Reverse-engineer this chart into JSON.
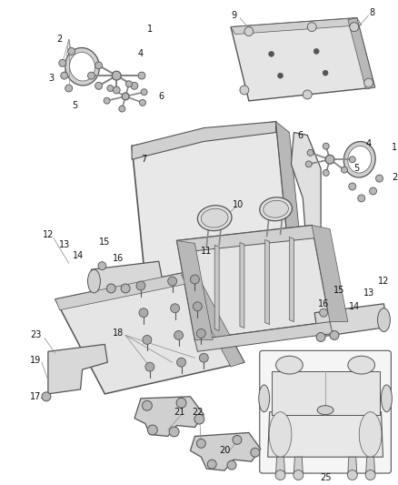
{
  "background": "#ffffff",
  "fig_width": 4.38,
  "fig_height": 5.33,
  "dpi": 100,
  "line_color": "#555555",
  "fill_light": "#e8e8e8",
  "fill_mid": "#d0d0d0",
  "fill_dark": "#b8b8b8"
}
